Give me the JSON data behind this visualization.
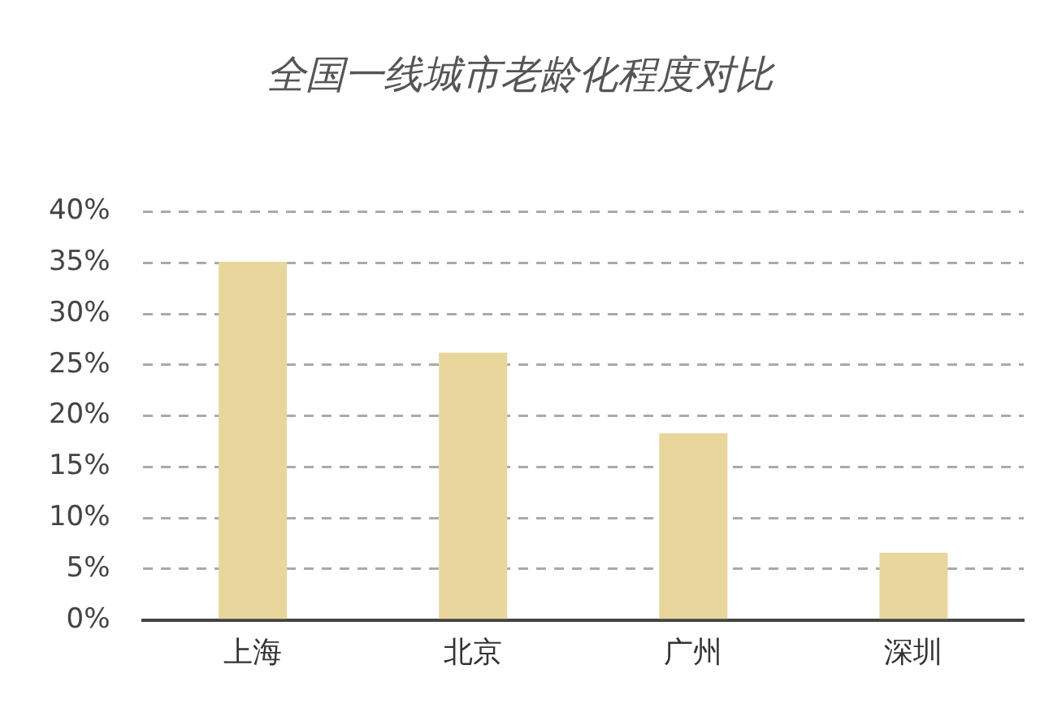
{
  "chart_data": {
    "type": "bar",
    "title": "全国一线城市老龄化程度对比",
    "categories": [
      "上海",
      "北京",
      "广州",
      "深圳"
    ],
    "values": [
      35.1,
      26.2,
      18.3,
      6.6
    ],
    "color": "#e8d69c",
    "ylim": [
      0,
      40
    ],
    "yticks": [
      {
        "value": 0,
        "label": "0%"
      },
      {
        "value": 5,
        "label": "5%"
      },
      {
        "value": 10,
        "label": "10%"
      },
      {
        "value": 15,
        "label": "15%"
      },
      {
        "value": 20,
        "label": "20%"
      },
      {
        "value": 25,
        "label": "25%"
      },
      {
        "value": 30,
        "label": "30%"
      },
      {
        "value": 35,
        "label": "35%"
      },
      {
        "value": 40,
        "label": "40%"
      }
    ],
    "grid": "y",
    "line_style": "dashed"
  }
}
